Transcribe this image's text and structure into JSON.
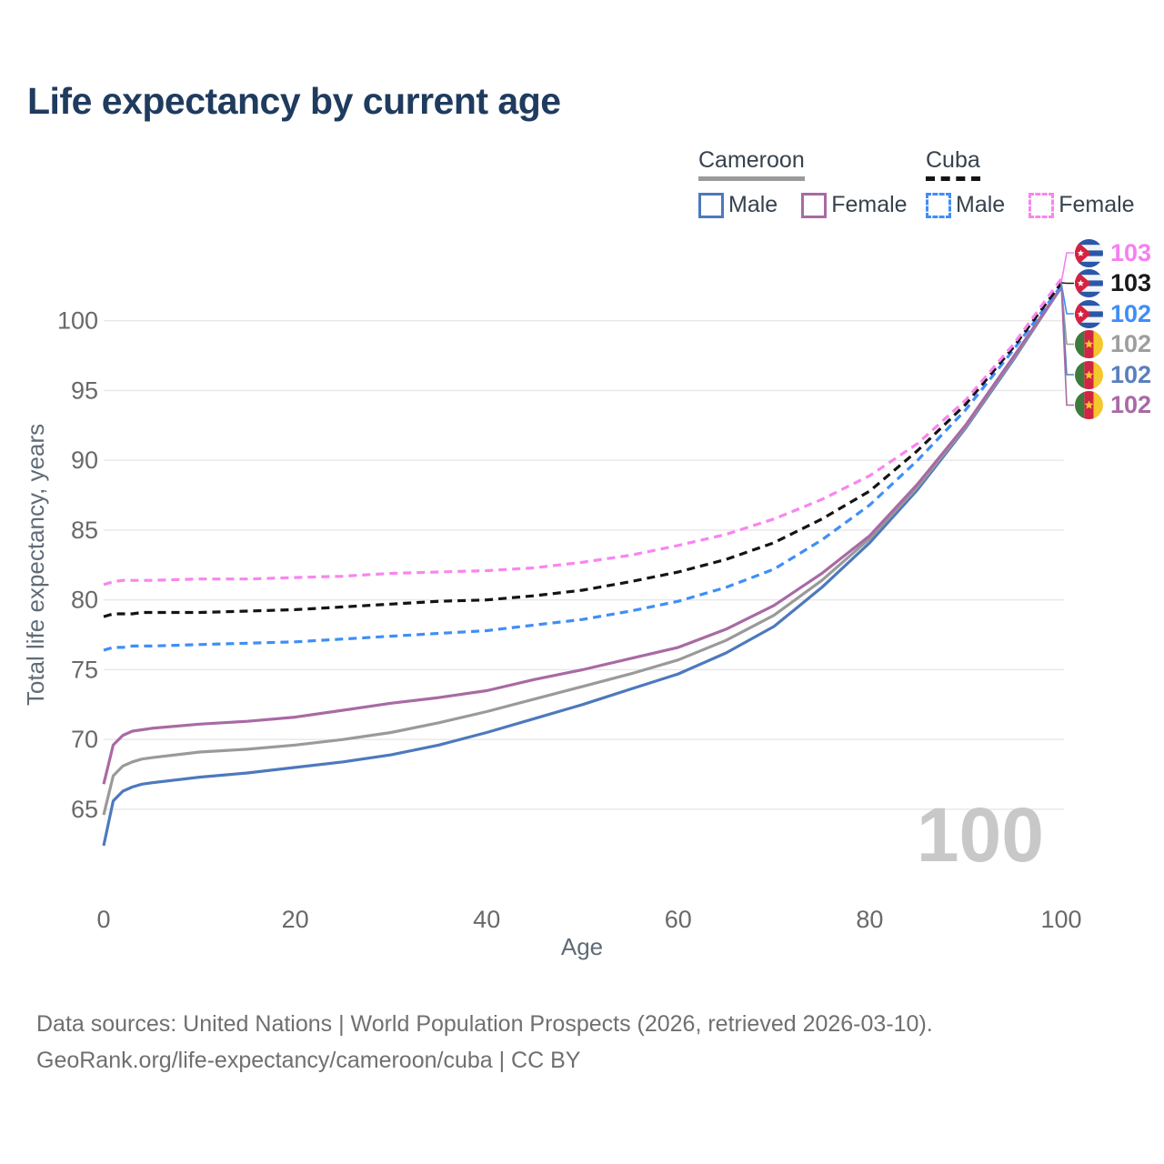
{
  "title": "Life expectancy by current age",
  "watermark": "100",
  "footer": {
    "line1": "Data sources: United Nations | World Population Prospects (2026, retrieved 2026-03-10).",
    "line2": "GeoRank.org/life-expectancy/cameroon/cuba | CC BY"
  },
  "legend": {
    "groups": [
      {
        "label": "Cameroon",
        "line_style": "solid",
        "line_color": "#9a9a9a",
        "items": [
          {
            "label": "Male",
            "color": "#4d79bd",
            "dashed": false
          },
          {
            "label": "Female",
            "color": "#a86aa4",
            "dashed": false
          }
        ]
      },
      {
        "label": "Cuba",
        "line_style": "dashed",
        "line_color": "#141414",
        "items": [
          {
            "label": "Male",
            "color": "#3f8ef7",
            "dashed": true
          },
          {
            "label": "Female",
            "color": "#f985ef",
            "dashed": true
          }
        ]
      }
    ]
  },
  "chart_data": {
    "type": "line",
    "title": "Life expectancy by current age",
    "xlabel": "Age",
    "ylabel": "Total life expectancy, years",
    "xlim": [
      0,
      100
    ],
    "ylim": [
      61,
      104.5
    ],
    "xticks": [
      0,
      20,
      40,
      60,
      80,
      100
    ],
    "yticks": [
      65,
      70,
      75,
      80,
      85,
      90,
      95,
      100
    ],
    "grid": "horizontal",
    "legend_position": "top-right",
    "x": [
      0,
      1,
      2,
      3,
      4,
      5,
      10,
      15,
      20,
      25,
      30,
      35,
      40,
      45,
      50,
      55,
      60,
      65,
      70,
      75,
      80,
      85,
      90,
      95,
      100
    ],
    "series": [
      {
        "id": "cameroon-male",
        "name": "Cameroon Male",
        "color": "#4d79bd",
        "dashed": false,
        "values": [
          62.4,
          65.6,
          66.3,
          66.6,
          66.8,
          66.9,
          67.3,
          67.6,
          68.0,
          68.4,
          68.9,
          69.6,
          70.5,
          71.5,
          72.5,
          73.6,
          74.7,
          76.2,
          78.1,
          80.9,
          84.1,
          87.9,
          92.3,
          97.2,
          102.4
        ]
      },
      {
        "id": "cameroon-all",
        "name": "Cameroon",
        "color": "#9a9a9a",
        "dashed": false,
        "values": [
          64.6,
          67.4,
          68.1,
          68.4,
          68.6,
          68.7,
          69.1,
          69.3,
          69.6,
          70.0,
          70.5,
          71.2,
          72.0,
          72.9,
          73.8,
          74.7,
          75.7,
          77.1,
          78.9,
          81.4,
          84.4,
          88.1,
          92.4,
          97.3,
          102.4
        ]
      },
      {
        "id": "cameroon-female",
        "name": "Cameroon Female",
        "color": "#a86aa4",
        "dashed": false,
        "values": [
          66.8,
          69.6,
          70.3,
          70.6,
          70.7,
          70.8,
          71.1,
          71.3,
          71.6,
          72.1,
          72.6,
          73.0,
          73.5,
          74.3,
          75.0,
          75.8,
          76.6,
          77.9,
          79.6,
          81.9,
          84.6,
          88.3,
          92.5,
          97.4,
          102.4
        ]
      },
      {
        "id": "cuba-male",
        "name": "Cuba Male",
        "color": "#3f8ef7",
        "dashed": true,
        "values": [
          76.4,
          76.6,
          76.6,
          76.7,
          76.7,
          76.7,
          76.8,
          76.9,
          77.0,
          77.2,
          77.4,
          77.6,
          77.8,
          78.2,
          78.6,
          79.2,
          79.9,
          80.9,
          82.2,
          84.3,
          86.8,
          90.0,
          93.6,
          97.9,
          102.5
        ]
      },
      {
        "id": "cuba-all",
        "name": "Cuba",
        "color": "#141414",
        "dashed": true,
        "values": [
          78.8,
          79.0,
          79.0,
          79.0,
          79.1,
          79.1,
          79.1,
          79.2,
          79.3,
          79.5,
          79.7,
          79.9,
          80.0,
          80.3,
          80.7,
          81.3,
          82.0,
          82.9,
          84.1,
          85.8,
          87.8,
          90.7,
          94.0,
          98.1,
          102.7
        ]
      },
      {
        "id": "cuba-female",
        "name": "Cuba Female",
        "color": "#f985ef",
        "dashed": true,
        "values": [
          81.1,
          81.3,
          81.4,
          81.4,
          81.4,
          81.4,
          81.5,
          81.5,
          81.6,
          81.7,
          81.9,
          82.0,
          82.1,
          82.3,
          82.7,
          83.2,
          83.9,
          84.7,
          85.8,
          87.2,
          88.9,
          91.2,
          94.3,
          98.3,
          103.0
        ]
      }
    ]
  },
  "endpoint_labels": [
    {
      "series_id": "cuba-female",
      "flag": "cuba",
      "value": "103",
      "color": "#f67ff0"
    },
    {
      "series_id": "cuba-all",
      "flag": "cuba",
      "value": "103",
      "color": "#1a1a1a"
    },
    {
      "series_id": "cuba-male",
      "flag": "cuba",
      "value": "102",
      "color": "#3f8ef7"
    },
    {
      "series_id": "cameroon-all",
      "flag": "cameroon",
      "value": "102",
      "color": "#9e9e9e"
    },
    {
      "series_id": "cameroon-male",
      "flag": "cameroon",
      "value": "102",
      "color": "#5b7fbd"
    },
    {
      "series_id": "cameroon-female",
      "flag": "cameroon",
      "value": "102",
      "color": "#a86aa4"
    }
  ]
}
